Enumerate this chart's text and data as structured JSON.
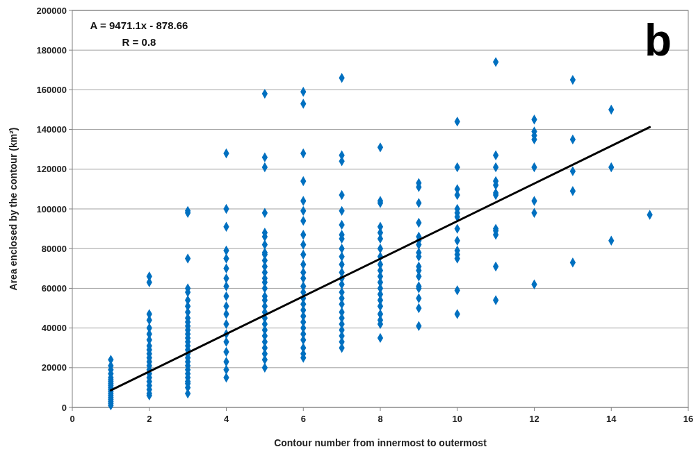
{
  "chart_data": {
    "type": "scatter",
    "xlabel": "Contour number from innermost to outermost",
    "ylabel": "Area enclosed by the contour (km²)",
    "xlim": [
      0,
      16
    ],
    "xticks": [
      0,
      2,
      4,
      6,
      8,
      10,
      12,
      14,
      16
    ],
    "ylim": [
      0,
      200000
    ],
    "yticks": [
      0,
      20000,
      40000,
      60000,
      80000,
      100000,
      120000,
      140000,
      160000,
      180000,
      200000
    ],
    "grid": "y",
    "annotations": [
      "A = 9471.1x - 878.66",
      "R = 0.8",
      "b"
    ],
    "series": [
      {
        "marker": "diamond",
        "color": "#0070c0",
        "x": [
          1,
          1,
          1,
          1,
          1,
          1,
          1,
          1,
          1,
          1,
          1,
          1,
          1,
          1,
          1,
          1,
          1,
          1,
          1,
          2,
          2,
          2,
          2,
          2,
          2,
          2,
          2,
          2,
          2,
          2,
          2,
          2,
          2,
          2,
          2,
          2,
          2,
          2,
          2,
          2,
          3,
          3,
          3,
          3,
          3,
          3,
          3,
          3,
          3,
          3,
          3,
          3,
          3,
          3,
          3,
          3,
          3,
          3,
          3,
          3,
          3,
          3,
          3,
          3,
          3,
          3,
          3,
          3,
          4,
          4,
          4,
          4,
          4,
          4,
          4,
          4,
          4,
          4,
          4,
          4,
          4,
          4,
          4,
          4,
          4,
          4,
          5,
          5,
          5,
          5,
          5,
          5,
          5,
          5,
          5,
          5,
          5,
          5,
          5,
          5,
          5,
          5,
          5,
          5,
          5,
          5,
          5,
          5,
          5,
          5,
          5,
          5,
          5,
          5,
          6,
          6,
          6,
          6,
          6,
          6,
          6,
          6,
          6,
          6,
          6,
          6,
          6,
          6,
          6,
          6,
          6,
          6,
          6,
          6,
          6,
          6,
          6,
          6,
          6,
          6,
          7,
          7,
          7,
          7,
          7,
          7,
          7,
          7,
          7,
          7,
          7,
          7,
          7,
          7,
          7,
          7,
          7,
          7,
          7,
          7,
          7,
          7,
          7,
          7,
          8,
          8,
          8,
          8,
          8,
          8,
          8,
          8,
          8,
          8,
          8,
          8,
          8,
          8,
          8,
          8,
          8,
          8,
          8,
          8,
          9,
          9,
          9,
          9,
          9,
          9,
          9,
          9,
          9,
          9,
          9,
          9,
          9,
          9,
          9,
          9,
          9,
          10,
          10,
          10,
          10,
          10,
          10,
          10,
          10,
          10,
          10,
          10,
          10,
          10,
          10,
          11,
          11,
          11,
          11,
          11,
          11,
          11,
          11,
          11,
          11,
          11,
          11,
          12,
          12,
          12,
          12,
          12,
          12,
          12,
          12,
          13,
          13,
          13,
          13,
          13,
          14,
          14,
          14,
          15
        ],
        "values": [
          24000,
          21000,
          19000,
          17000,
          15000,
          14000,
          13000,
          12000,
          11000,
          10000,
          9000,
          8000,
          7000,
          6000,
          5000,
          4000,
          3000,
          2000,
          1000,
          66000,
          63000,
          47000,
          44000,
          40000,
          37000,
          34000,
          31000,
          29000,
          27000,
          25000,
          23000,
          21000,
          19000,
          17000,
          15000,
          13000,
          11000,
          9000,
          7000,
          6000,
          99000,
          98000,
          75000,
          60000,
          58000,
          54000,
          51000,
          48000,
          45000,
          43000,
          41000,
          39000,
          37000,
          35000,
          33000,
          31000,
          29000,
          27000,
          25000,
          23000,
          21000,
          19000,
          17000,
          15000,
          13000,
          12000,
          10000,
          7000,
          128000,
          100000,
          91000,
          79000,
          75000,
          70000,
          65000,
          61000,
          56000,
          51000,
          47000,
          42000,
          37000,
          33000,
          28000,
          23000,
          19000,
          15000,
          158000,
          126000,
          121000,
          98000,
          88000,
          86000,
          82000,
          78000,
          77000,
          74000,
          71000,
          68000,
          65000,
          63000,
          60000,
          56000,
          54000,
          51000,
          48000,
          45000,
          42000,
          39000,
          36000,
          33000,
          30000,
          27000,
          24000,
          20000,
          159000,
          153000,
          128000,
          114000,
          104000,
          99000,
          94000,
          87000,
          82000,
          77000,
          72000,
          68000,
          65000,
          61000,
          58000,
          55000,
          52000,
          49000,
          46000,
          43000,
          40000,
          37000,
          34000,
          30000,
          27000,
          25000,
          166000,
          127000,
          124000,
          107000,
          99000,
          92000,
          87000,
          85000,
          80000,
          76000,
          72000,
          68000,
          65000,
          62000,
          58000,
          55000,
          52000,
          48000,
          45000,
          42000,
          39000,
          36000,
          33000,
          30000,
          131000,
          104000,
          103000,
          91000,
          88000,
          85000,
          80000,
          76000,
          72000,
          69000,
          66000,
          63000,
          60000,
          57000,
          54000,
          51000,
          47000,
          44000,
          42000,
          35000,
          113000,
          111000,
          103000,
          93000,
          86000,
          84000,
          82000,
          78000,
          76000,
          71000,
          69000,
          66000,
          61000,
          60000,
          55000,
          50000,
          41000,
          144000,
          121000,
          110000,
          107000,
          100000,
          98000,
          96000,
          90000,
          84000,
          79000,
          77000,
          75000,
          59000,
          47000,
          174000,
          127000,
          121000,
          114000,
          112000,
          108000,
          107000,
          90000,
          89000,
          87000,
          71000,
          54000,
          145000,
          139000,
          137000,
          135000,
          121000,
          104000,
          98000,
          62000,
          165000,
          135000,
          119000,
          109000,
          73000,
          150000,
          121000,
          84000,
          97000
        ]
      },
      {
        "type": "line",
        "marker": "none",
        "color": "#000000",
        "x": [
          1,
          15
        ],
        "values": [
          8600,
          141200
        ]
      }
    ]
  }
}
